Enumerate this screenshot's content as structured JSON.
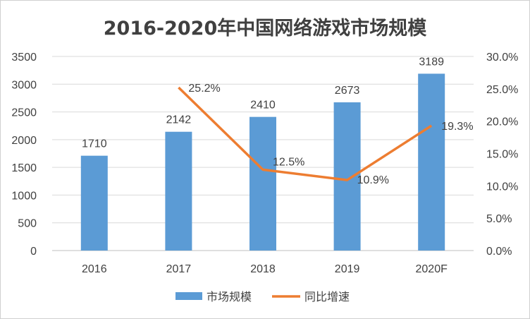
{
  "chart_data": {
    "type": "bar+line",
    "title": "2016-2020年中国网络游戏市场规模",
    "categories": [
      "2016",
      "2017",
      "2018",
      "2019",
      "2020F"
    ],
    "series": [
      {
        "name": "市场规模",
        "type": "bar",
        "axis": "left",
        "values": [
          1710,
          2142,
          2410,
          2673,
          3189
        ],
        "labels": [
          "1710",
          "2142",
          "2410",
          "2673",
          "3189"
        ],
        "color": "#5B9BD5"
      },
      {
        "name": "同比增速",
        "type": "line",
        "axis": "right",
        "values": [
          null,
          25.2,
          12.5,
          10.9,
          19.3
        ],
        "labels": [
          "",
          "25.2%",
          "12.5%",
          "10.9%",
          "19.3%"
        ],
        "color": "#ED7D31"
      }
    ],
    "left_axis": {
      "ylim": [
        0,
        3500
      ],
      "ticks": [
        "0",
        "500",
        "1000",
        "1500",
        "2000",
        "2500",
        "3000",
        "3500"
      ]
    },
    "right_axis": {
      "ylim": [
        0,
        30
      ],
      "ticks": [
        "0.0%",
        "5.0%",
        "10.0%",
        "15.0%",
        "20.0%",
        "25.0%",
        "30.0%"
      ]
    },
    "grid": true,
    "legend_position": "bottom"
  }
}
